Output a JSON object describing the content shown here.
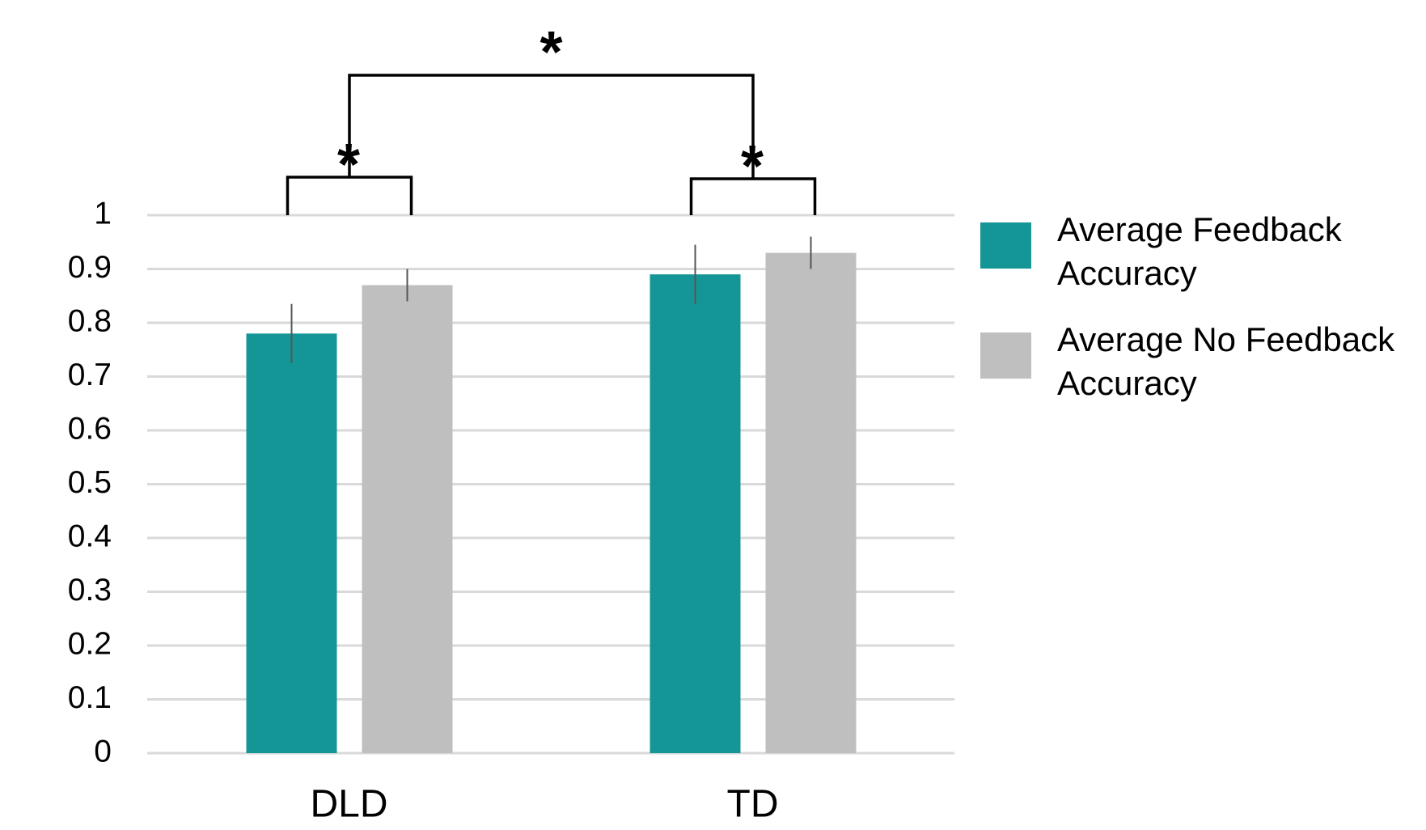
{
  "chart_data": {
    "type": "bar",
    "categories": [
      "DLD",
      "TD"
    ],
    "series": [
      {
        "name": "Average Feedback Accuracy",
        "color": "#159696",
        "values": [
          0.78,
          0.89
        ],
        "errors": [
          0.055,
          0.055
        ]
      },
      {
        "name": "Average No Feedback Accuracy",
        "color": "#bfbfbf",
        "values": [
          0.87,
          0.93
        ],
        "errors": [
          0.03,
          0.03
        ]
      }
    ],
    "ylim": [
      0,
      1
    ],
    "yticks": [
      0,
      0.1,
      0.2,
      0.3,
      0.4,
      0.5,
      0.6,
      0.7,
      0.8,
      0.9,
      1
    ],
    "grid": true,
    "legend": "right",
    "annotations": [
      {
        "text": "*"
      },
      {
        "text": "*"
      },
      {
        "text": "*"
      }
    ]
  }
}
